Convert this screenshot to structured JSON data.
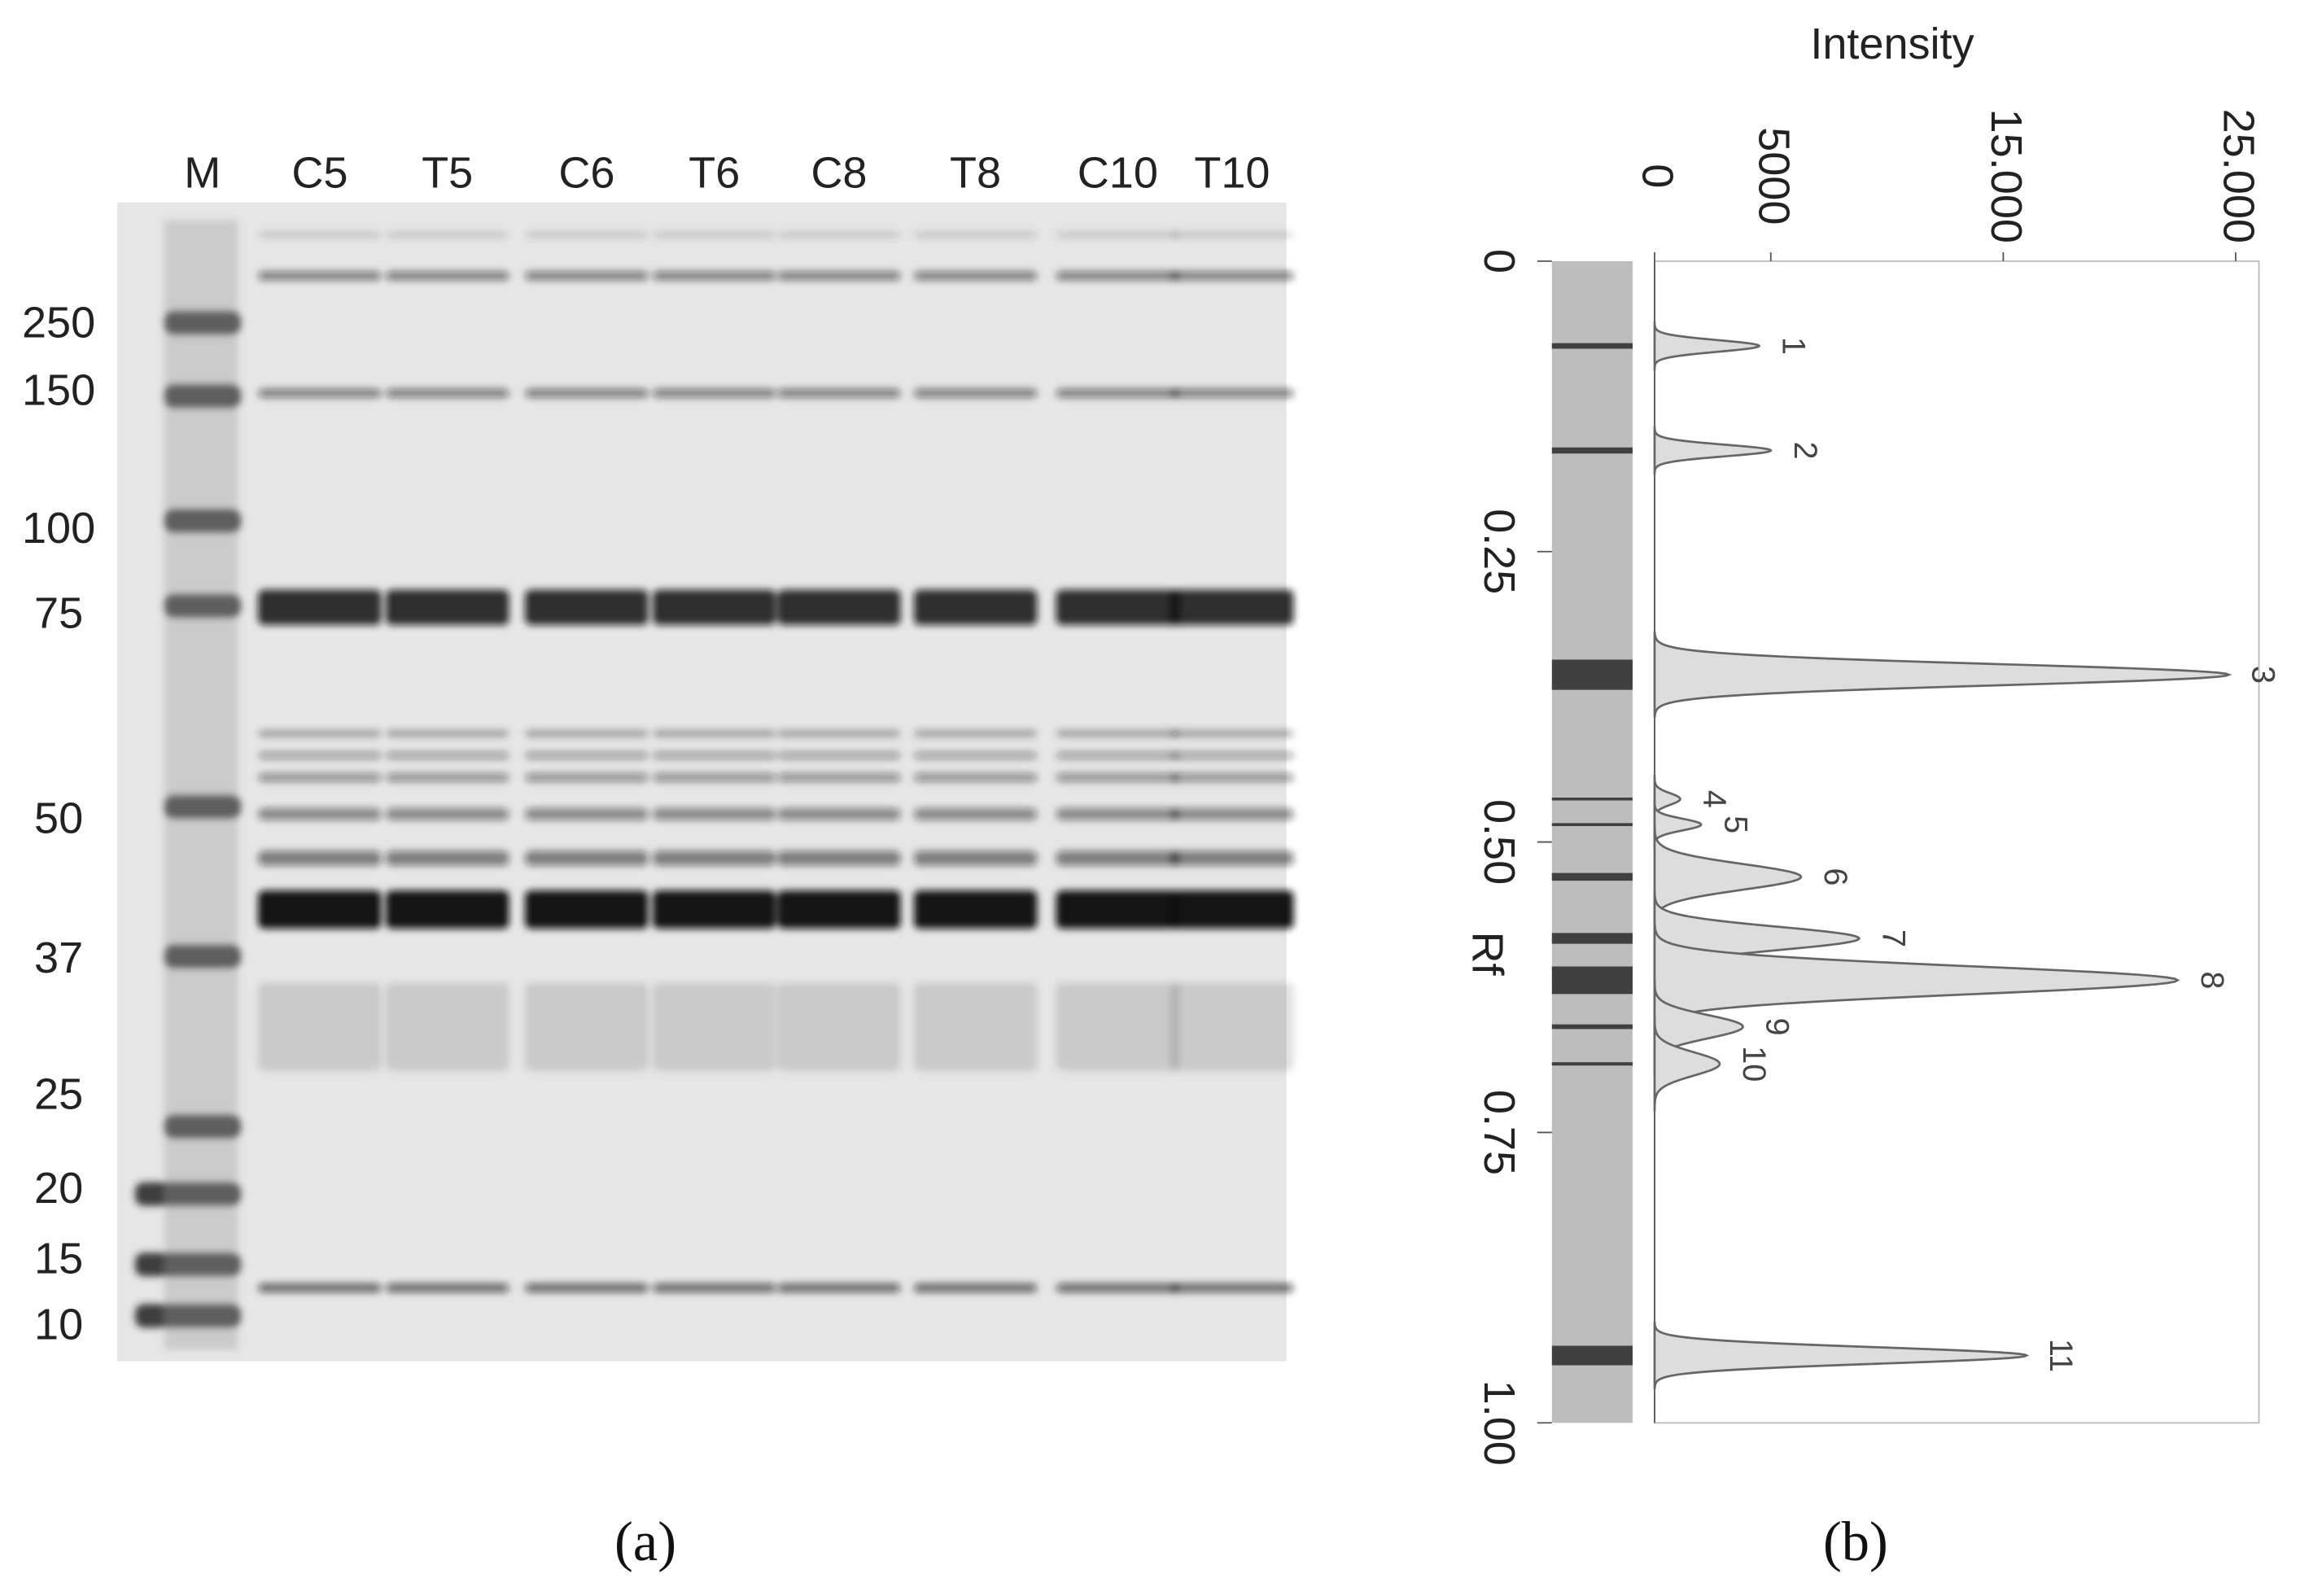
{
  "figure_a": {
    "caption": "(a)",
    "lanes": [
      "M",
      "C5",
      "T5",
      "C6",
      "T6",
      "C8",
      "T8",
      "C10",
      "T10"
    ],
    "mw_markers": [
      250,
      150,
      100,
      75,
      50,
      37,
      25,
      20,
      15,
      10
    ]
  },
  "chart_data": {
    "type": "peaks",
    "caption": "(b)",
    "y_label": "Intensity",
    "x_label": "Rf",
    "categories": [
      "1",
      "2",
      "3",
      "4",
      "5",
      "6",
      "7",
      "8",
      "9",
      "10",
      "11"
    ],
    "x": [
      0.073,
      0.163,
      0.356,
      0.463,
      0.485,
      0.53,
      0.583,
      0.619,
      0.659,
      0.691,
      0.942
    ],
    "values": [
      4500,
      5000,
      24700,
      1100,
      2000,
      6300,
      8800,
      22500,
      3800,
      2800,
      16000
    ],
    "xlim": [
      0,
      1
    ],
    "xticks": [
      0,
      0.25,
      {
        "value": 0.5,
        "label": "0.50"
      },
      0.75,
      {
        "value": 1,
        "label": "1.00"
      }
    ],
    "ylim": [
      0,
      26000
    ],
    "yticks": [
      0,
      5000,
      {
        "value": 15000,
        "label": "15.000"
      },
      {
        "value": 25000,
        "label": "25.000"
      }
    ]
  }
}
